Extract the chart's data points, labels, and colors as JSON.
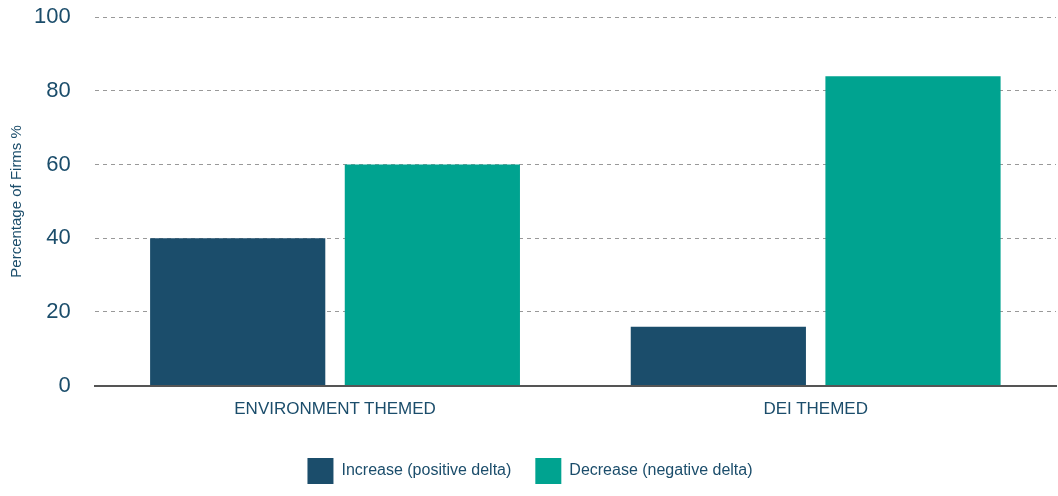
{
  "chart_data": {
    "type": "bar",
    "ylabel": "Percentage of Firms %",
    "categories": [
      "ENVIRONMENT THEMED",
      "DEI THEMED"
    ],
    "series": [
      {
        "name": "Increase (positive delta)",
        "color": "#1b4d6b",
        "values": [
          40,
          16
        ]
      },
      {
        "name": "Decrease (negative delta)",
        "color": "#00a390",
        "values": [
          60,
          84
        ]
      }
    ],
    "ylim": [
      0,
      100
    ],
    "yticks": [
      0,
      20,
      40,
      60,
      80,
      100
    ],
    "grid": "y",
    "legend": "bottom"
  }
}
